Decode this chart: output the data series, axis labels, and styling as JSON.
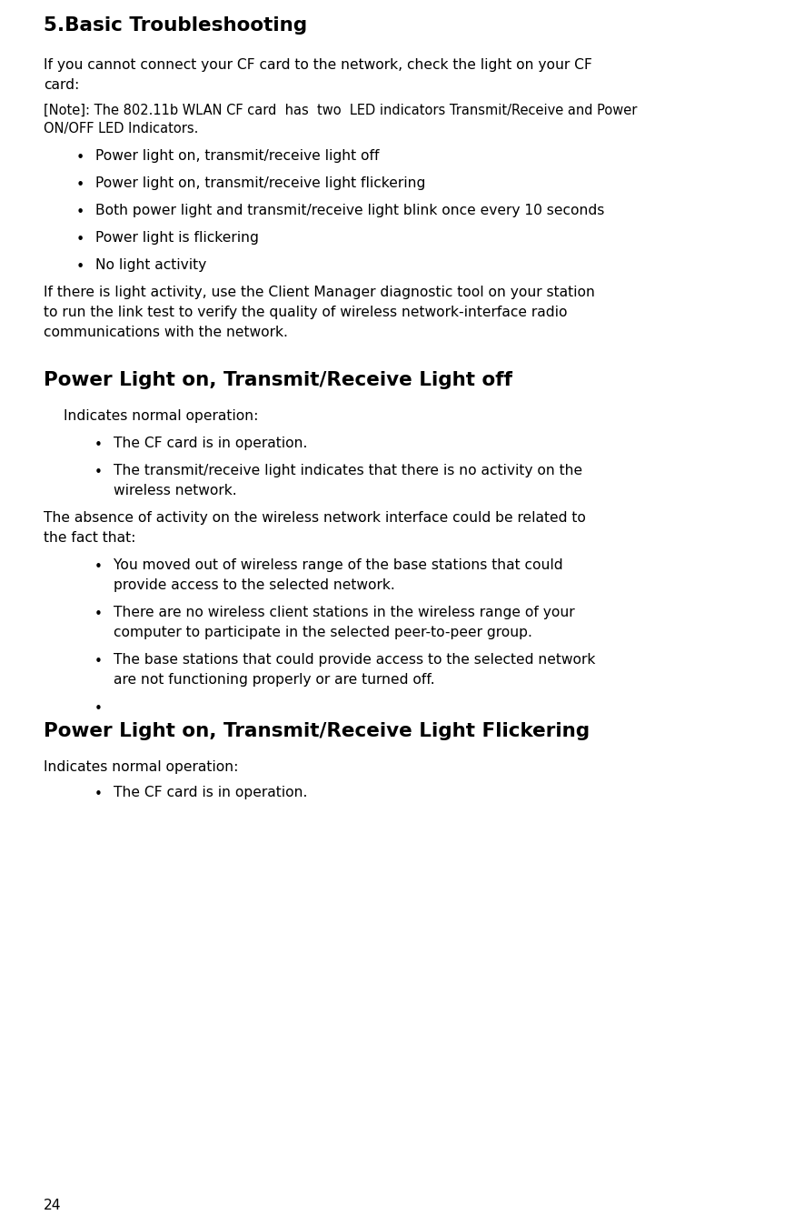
{
  "bg_color": "#ffffff",
  "text_color": "#000000",
  "page_number": "24",
  "content": [
    {
      "type": "title",
      "text": "5.Basic Troubleshooting"
    },
    {
      "type": "para",
      "text": "If you cannot connect your CF card to the network, check the light on your CF\ncard:"
    },
    {
      "type": "note",
      "text": "[Note]: The 802.11b WLAN CF card  has  two  LED indicators Transmit/Receive and Power\nON/OFF LED Indicators."
    },
    {
      "type": "bullet1",
      "text": "Power light on, transmit/receive light off"
    },
    {
      "type": "bullet1",
      "text": "Power light on, transmit/receive light flickering"
    },
    {
      "type": "bullet1",
      "text": "Both power light and transmit/receive light blink once every 10 seconds"
    },
    {
      "type": "bullet1",
      "text": "Power light is flickering"
    },
    {
      "type": "bullet1",
      "text": "No light activity"
    },
    {
      "type": "para",
      "text": "If there is light activity, use the Client Manager diagnostic tool on your station\nto run the link test to verify the quality of wireless network-interface radio\ncommunications with the network."
    },
    {
      "type": "spacer_large"
    },
    {
      "type": "section_title",
      "text": "Power Light on, Transmit/Receive Light off"
    },
    {
      "type": "indented_para",
      "text": "Indicates normal operation:"
    },
    {
      "type": "bullet2",
      "text": "The CF card is in operation."
    },
    {
      "type": "bullet2_wrap",
      "line1": "The transmit/receive light indicates that there is no activity on the",
      "line2": "wireless network."
    },
    {
      "type": "para_left",
      "text": "The absence of activity on the wireless network interface could be related to\nthe fact that:"
    },
    {
      "type": "bullet2_wrap",
      "line1": "You moved out of wireless range of the base stations that could",
      "line2": "provide access to the selected network."
    },
    {
      "type": "bullet2_wrap",
      "line1": "There are no wireless client stations in the wireless range of your",
      "line2": "computer to participate in the selected peer-to-peer group."
    },
    {
      "type": "bullet2_wrap",
      "line1": "The base stations that could provide access to the selected network",
      "line2": "are not functioning properly or are turned off."
    },
    {
      "type": "bullet2_empty"
    },
    {
      "type": "section_title",
      "text": "Power Light on, Transmit/Receive Light Flickering"
    },
    {
      "type": "para_noindent",
      "text": "Indicates normal operation:"
    },
    {
      "type": "bullet2",
      "text": "The CF card is in operation."
    }
  ]
}
